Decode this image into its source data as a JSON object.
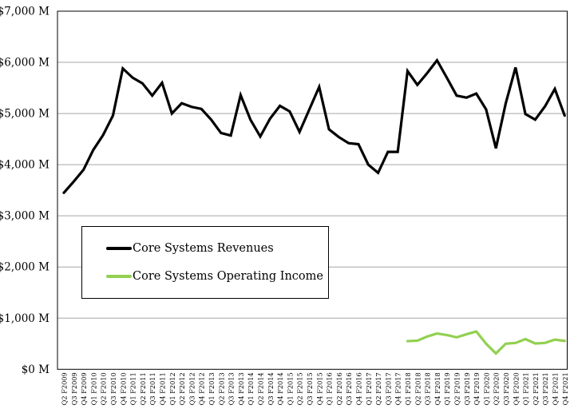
{
  "chart_data": {
    "type": "line",
    "title": "",
    "xlabel": "",
    "ylabel": "",
    "grid": "horizontal-gray",
    "legend_position": "boxed-middle-left",
    "categories": [
      "Q2 F2009",
      "Q3 F2009",
      "Q4 F2009",
      "Q1 F2010",
      "Q2 F2010",
      "Q3 F2010",
      "Q4 F2010",
      "Q1 F2011",
      "Q2 F2011",
      "Q3 F2011",
      "Q4 F2011",
      "Q1 F2012",
      "Q2 F2012",
      "Q3 F2012",
      "Q4 F2012",
      "Q1 F2013",
      "Q2 F2013",
      "Q3 F2013",
      "Q4 F2013",
      "Q1 F2014",
      "Q2 F2014",
      "Q3 F2014",
      "Q4 F2014",
      "Q1 F2015",
      "Q2 F2015",
      "Q3 F2015",
      "Q4 F2015",
      "Q1 F2016",
      "Q2 F2016",
      "Q3 F2016",
      "Q4 F2016",
      "Q1 F2017",
      "Q2 F2017",
      "Q3 F2017",
      "Q4 F2017",
      "Q1 F2018",
      "Q2 F2018",
      "Q3 F2018",
      "Q4 F2018",
      "Q1 F2019",
      "Q2 F2019",
      "Q3 F2019",
      "Q4 F2019",
      "Q1 F2020",
      "Q2 F2020",
      "Q3 F2020",
      "Q4 F2020",
      "Q1 F2021",
      "Q2 F2021",
      "Q3 F2021",
      "Q4 F2021",
      "Q4 F2021"
    ],
    "series": [
      {
        "name": "Core Systems Revenues",
        "color": "#000000",
        "values": [
          3450,
          3670,
          3900,
          4290,
          4580,
          4960,
          5880,
          5700,
          5590,
          5350,
          5600,
          5000,
          5200,
          5130,
          5090,
          4880,
          4620,
          4570,
          5360,
          4880,
          4550,
          4900,
          5150,
          5040,
          4640,
          5080,
          5520,
          4690,
          4540,
          4420,
          4400,
          4000,
          3840,
          4250,
          4250,
          5830,
          5560,
          5790,
          6040,
          5700,
          5350,
          5310,
          5390,
          5080,
          4320,
          5200,
          5900,
          4990,
          4880,
          5140,
          5480,
          4960
        ]
      },
      {
        "name": "Core Systems Operating Income",
        "color": "#92D050",
        "values": [
          null,
          null,
          null,
          null,
          null,
          null,
          null,
          null,
          null,
          null,
          null,
          null,
          null,
          null,
          null,
          null,
          null,
          null,
          null,
          null,
          null,
          null,
          null,
          null,
          null,
          null,
          null,
          null,
          null,
          null,
          null,
          null,
          null,
          null,
          null,
          550,
          560,
          640,
          700,
          670,
          625,
          685,
          740,
          500,
          310,
          500,
          515,
          590,
          505,
          515,
          580,
          555
        ]
      }
    ],
    "y_axis": {
      "min": 0,
      "max": 7000,
      "step": 1000,
      "tick_labels": [
        "$0 M",
        "$1,000 M",
        "$2,000 M",
        "$3,000 M",
        "$4,000 M",
        "$5,000 M",
        "$6,000 M",
        "$7,000 M"
      ]
    },
    "colors": {
      "gridline": "#A6A6A6",
      "plot_border": "#000000",
      "background": "#FFFFFF"
    }
  }
}
